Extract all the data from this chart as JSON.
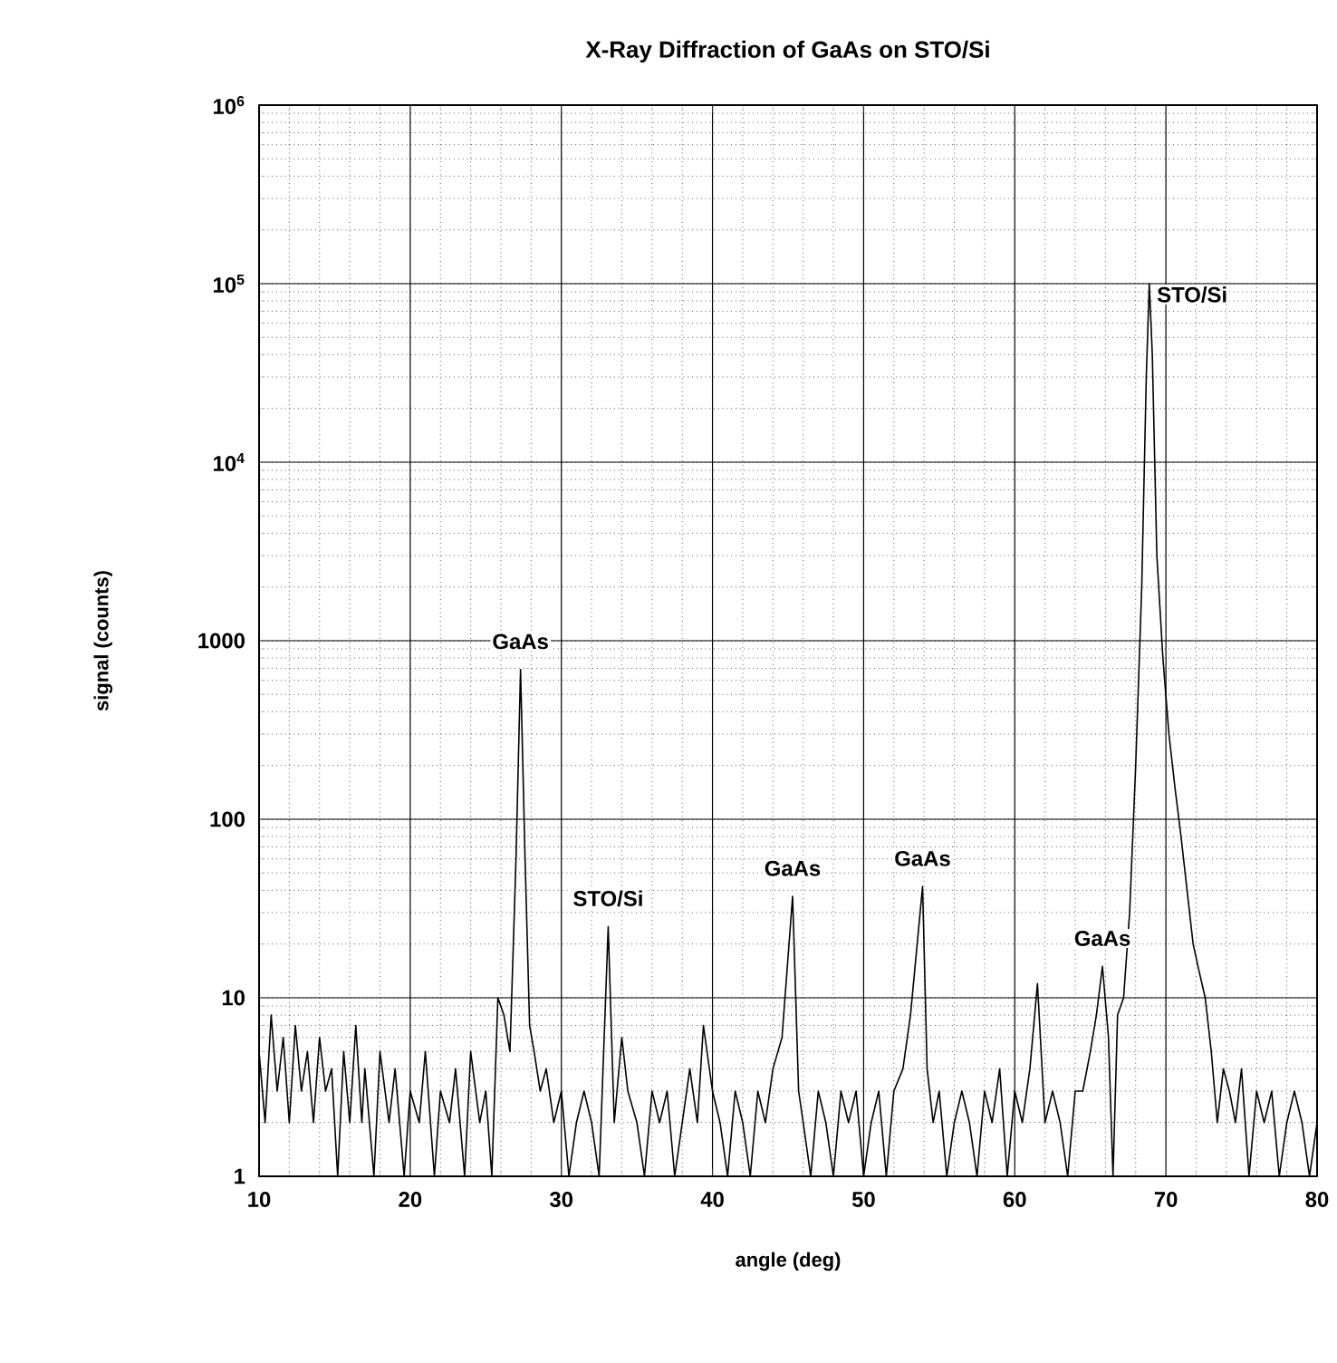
{
  "chart_data": {
    "type": "line",
    "title": "X-Ray Diffraction of GaAs on STO/Si",
    "xlabel": "angle (deg)",
    "ylabel": "signal (counts)",
    "xlim": [
      10,
      80
    ],
    "xticks": [
      10,
      20,
      30,
      40,
      50,
      60,
      70,
      80
    ],
    "ylim": [
      1,
      1000000
    ],
    "yticks": [
      1,
      10,
      100,
      1000,
      {
        "value": 10000,
        "label": "10$^{4}$"
      },
      {
        "value": 100000,
        "label": "10$^{5}$"
      },
      {
        "value": 1000000,
        "label": "10$^{6}$"
      }
    ],
    "log": "y",
    "grid": true,
    "series": [
      {
        "color": "#000000",
        "x": [
          10,
          10.4,
          10.8,
          11.2,
          11.6,
          12,
          12.4,
          12.8,
          13.2,
          13.6,
          14,
          14.4,
          14.8,
          15.2,
          15.6,
          16,
          16.4,
          16.8,
          17,
          17.6,
          18,
          18.6,
          19,
          19.6,
          20,
          20.6,
          21,
          21.6,
          22,
          22.6,
          23,
          23.6,
          24,
          24.6,
          25,
          25.4,
          25.8,
          26.2,
          26.6,
          27.0,
          27.3,
          27.6,
          27.9,
          28.2,
          28.6,
          29,
          29.5,
          30,
          30.5,
          31,
          31.5,
          32,
          32.5,
          33.1,
          33.5,
          34,
          34.4,
          35,
          35.5,
          36,
          36.5,
          37,
          37.5,
          38,
          38.5,
          39,
          39.4,
          40,
          40.5,
          41,
          41.5,
          42,
          42.5,
          43,
          43.5,
          44,
          44.6,
          45.3,
          45.7,
          46,
          46.5,
          47,
          47.5,
          48,
          48.5,
          49,
          49.5,
          50,
          50.5,
          51,
          51.5,
          52,
          52.6,
          53.1,
          53.9,
          54.2,
          54.6,
          55,
          55.5,
          56,
          56.5,
          57,
          57.5,
          58,
          58.5,
          59,
          59.5,
          60,
          60.5,
          61,
          61.5,
          62,
          62.5,
          63,
          63.5,
          64,
          64.5,
          65,
          65.4,
          65.8,
          66.2,
          66.5,
          66.8,
          67.2,
          67.6,
          68,
          68.4,
          68.7,
          68.9,
          69.1,
          69.4,
          69.8,
          70.2,
          70.6,
          71,
          71.4,
          71.8,
          72.2,
          72.6,
          73,
          73.4,
          73.8,
          74.2,
          74.6,
          75,
          75.5,
          76,
          76.5,
          77,
          77.5,
          78,
          78.5,
          79,
          79.5,
          80
        ],
        "values": [
          5,
          2,
          8,
          3,
          6,
          2,
          7,
          3,
          5,
          2,
          6,
          3,
          4,
          1,
          5,
          2,
          7,
          2,
          4,
          1,
          5,
          2,
          4,
          1,
          3,
          2,
          5,
          1,
          3,
          2,
          4,
          1,
          5,
          2,
          3,
          1,
          10,
          8,
          5,
          60,
          690,
          60,
          7,
          5,
          3,
          4,
          2,
          3,
          1,
          2,
          3,
          2,
          1,
          25,
          2,
          6,
          3,
          2,
          1,
          3,
          2,
          3,
          1,
          2,
          4,
          2,
          7,
          3,
          2,
          1,
          3,
          2,
          1,
          3,
          2,
          4,
          6,
          37,
          3,
          2,
          1,
          3,
          2,
          1,
          3,
          2,
          3,
          1,
          2,
          3,
          1,
          3,
          4,
          8,
          42,
          4,
          2,
          3,
          1,
          2,
          3,
          2,
          1,
          3,
          2,
          4,
          1,
          3,
          2,
          4,
          12,
          2,
          3,
          2,
          1,
          3,
          3,
          5,
          8,
          15,
          6,
          1,
          8,
          10,
          30,
          200,
          2000,
          30000,
          100000,
          40000,
          3000,
          800,
          300,
          150,
          80,
          40,
          20,
          14,
          10,
          5,
          2,
          4,
          3,
          2,
          4,
          1,
          3,
          2,
          3,
          1,
          2,
          3,
          2,
          1,
          2
        ]
      }
    ],
    "annotations": [
      {
        "text": "GaAs",
        "x": 27.3,
        "y": 690
      },
      {
        "text": "STO/Si",
        "x": 33.1,
        "y": 25
      },
      {
        "text": "GaAs",
        "x": 45.3,
        "y": 37
      },
      {
        "text": "GaAs",
        "x": 53.9,
        "y": 42
      },
      {
        "text": "GaAs",
        "x": 65.8,
        "y": 15
      },
      {
        "text": "STO/Si",
        "x": 68.9,
        "y": 100000
      }
    ]
  }
}
